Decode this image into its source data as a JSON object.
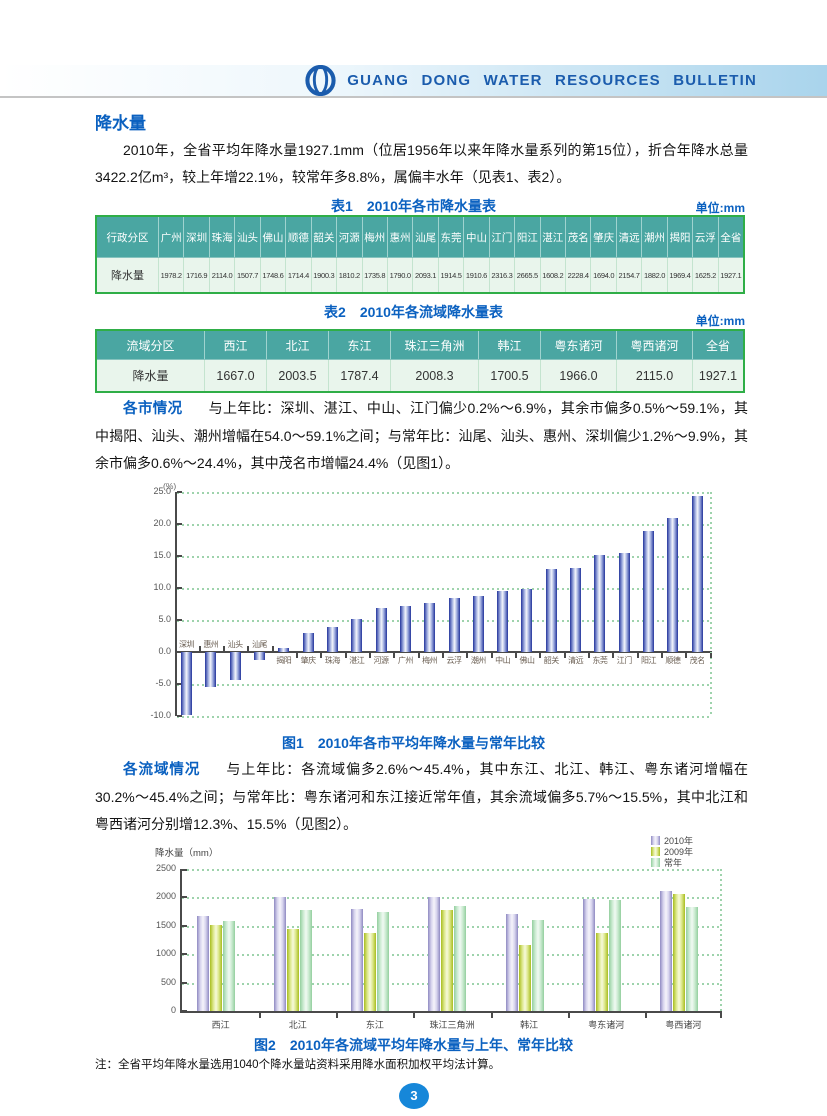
{
  "header": {
    "title": "GUANG DONG WATER RESOURCES BULLETIN"
  },
  "section_title": "降水量",
  "intro": "2010年，全省平均年降水量1927.1mm（位居1956年以来年降水量系列的第15位），折合年降水总量3422.2亿m³，较上年增22.1%，较常年多8.8%，属偏丰水年（见表1、表2）。",
  "table1": {
    "title": "表1　2010年各市降水量表",
    "unit": "单位:mm",
    "row_header": "行政分区",
    "value_header": "降水量",
    "columns": [
      "广州",
      "深圳",
      "珠海",
      "汕头",
      "佛山",
      "顺德",
      "韶关",
      "河源",
      "梅州",
      "惠州",
      "汕尾",
      "东莞",
      "中山",
      "江门",
      "阳江",
      "湛江",
      "茂名",
      "肇庆",
      "清远",
      "潮州",
      "揭阳",
      "云浮",
      "全省"
    ],
    "values": [
      "1978.2",
      "1716.9",
      "2114.0",
      "1507.7",
      "1748.6",
      "1714.4",
      "1900.3",
      "1810.2",
      "1735.8",
      "1790.0",
      "2093.1",
      "1914.5",
      "1910.6",
      "2316.3",
      "2665.5",
      "1608.2",
      "2228.4",
      "1694.0",
      "2154.7",
      "1882.0",
      "1969.4",
      "1625.2",
      "1927.1"
    ]
  },
  "table2": {
    "title": "表2　2010年各流域降水量表",
    "unit": "单位:mm",
    "row_header": "流域分区",
    "value_header": "降水量",
    "columns": [
      "西江",
      "北江",
      "东江",
      "珠江三角洲",
      "韩江",
      "粤东诸河",
      "粤西诸河",
      "全省"
    ],
    "values": [
      "1667.0",
      "2003.5",
      "1787.4",
      "2008.3",
      "1700.5",
      "1966.0",
      "2115.0",
      "1927.1"
    ]
  },
  "cities_section": {
    "label": "各市情况",
    "text": "与上年比：深圳、湛江、中山、江门偏少0.2%～6.9%，其余市偏多0.5%～59.1%，其中揭阳、汕头、潮州增幅在54.0～59.1%之间；与常年比：汕尾、汕头、惠州、深圳偏少1.2%～9.9%，其余市偏多0.6%～24.4%，其中茂名市增幅24.4%（见图1）。"
  },
  "basins_section": {
    "label": "各流域情况",
    "text": "与上年比：各流域偏多2.6%～45.4%，其中东江、北江、韩江、粤东诸河增幅在30.2%～45.4%之间；与常年比：粤东诸河和东江接近常年值，其余流域偏多5.7%～15.5%，其中北江和粤西诸河分别增12.3%、15.5%（见图2）。"
  },
  "fig1": {
    "caption": "图1　2010年各市平均年降水量与常年比较",
    "unit_label": "(%)"
  },
  "fig2": {
    "caption": "图2　2010年各流域平均年降水量与上年、常年比较",
    "ylabel": "降水量（mm）"
  },
  "note": "注：全省平均年降水量选用1040个降水量站资料采用降水面积加权平均法计算。",
  "page": {
    "number": "3"
  },
  "colors": {
    "accent_blue": "#0b61c0",
    "header_text_blue": "#1b5cad",
    "header_band_blue": "#a9d4ec",
    "table_header_teal": "#4aa6a2",
    "table_border_green": "#2fae47",
    "table_row_green": "#e9f5ec",
    "gridline_green": "#9ed3ac",
    "fig1_bar_blue": "#23349b",
    "fig2_2010_purple": "#8f8ac2",
    "fig2_2009_yellowgreen": "#a8bd1f",
    "fig2_normal_green": "#93cf9e",
    "page_badge_blue": "#1687d9"
  },
  "chart_data": [
    {
      "id": "figure1",
      "type": "bar",
      "title": "图1　2010年各市平均年降水量与常年比较",
      "xlabel": "",
      "ylabel": "(%)",
      "ylim": [
        -10.0,
        25.0
      ],
      "ytick_step": 5.0,
      "grid": true,
      "categories": [
        "深圳",
        "惠州",
        "汕头",
        "汕尾",
        "揭阳",
        "肇庆",
        "珠海",
        "湛江",
        "河源",
        "广州",
        "梅州",
        "云浮",
        "潮州",
        "中山",
        "佛山",
        "韶关",
        "清远",
        "东莞",
        "江门",
        "阳江",
        "顺德",
        "茂名"
      ],
      "values": [
        -9.9,
        -5.5,
        -4.3,
        -1.2,
        0.6,
        2.9,
        3.9,
        5.1,
        6.8,
        7.2,
        7.6,
        8.4,
        8.7,
        9.5,
        9.9,
        13.0,
        13.2,
        15.1,
        15.4,
        18.9,
        21.0,
        24.4
      ]
    },
    {
      "id": "figure2",
      "type": "bar",
      "title": "图2　2010年各流域平均年降水量与上年、常年比较",
      "xlabel": "",
      "ylabel": "降水量（mm）",
      "ylim": [
        0,
        2500
      ],
      "ytick_step": 500,
      "grid": true,
      "legend_position": "top-right",
      "categories": [
        "西江",
        "北江",
        "东江",
        "珠江三角洲",
        "韩江",
        "粤东诸河",
        "粤西诸河"
      ],
      "series": [
        {
          "name": "2010年",
          "values": [
            1667.0,
            2003.5,
            1787.4,
            2008.3,
            1700.5,
            1966.0,
            2115.0
          ]
        },
        {
          "name": "2009年",
          "values": [
            1520,
            1445,
            1370,
            1780,
            1170,
            1370,
            2060
          ]
        },
        {
          "name": "常年",
          "values": [
            1585,
            1784,
            1750,
            1851,
            1600,
            1950,
            1830
          ]
        }
      ]
    }
  ]
}
